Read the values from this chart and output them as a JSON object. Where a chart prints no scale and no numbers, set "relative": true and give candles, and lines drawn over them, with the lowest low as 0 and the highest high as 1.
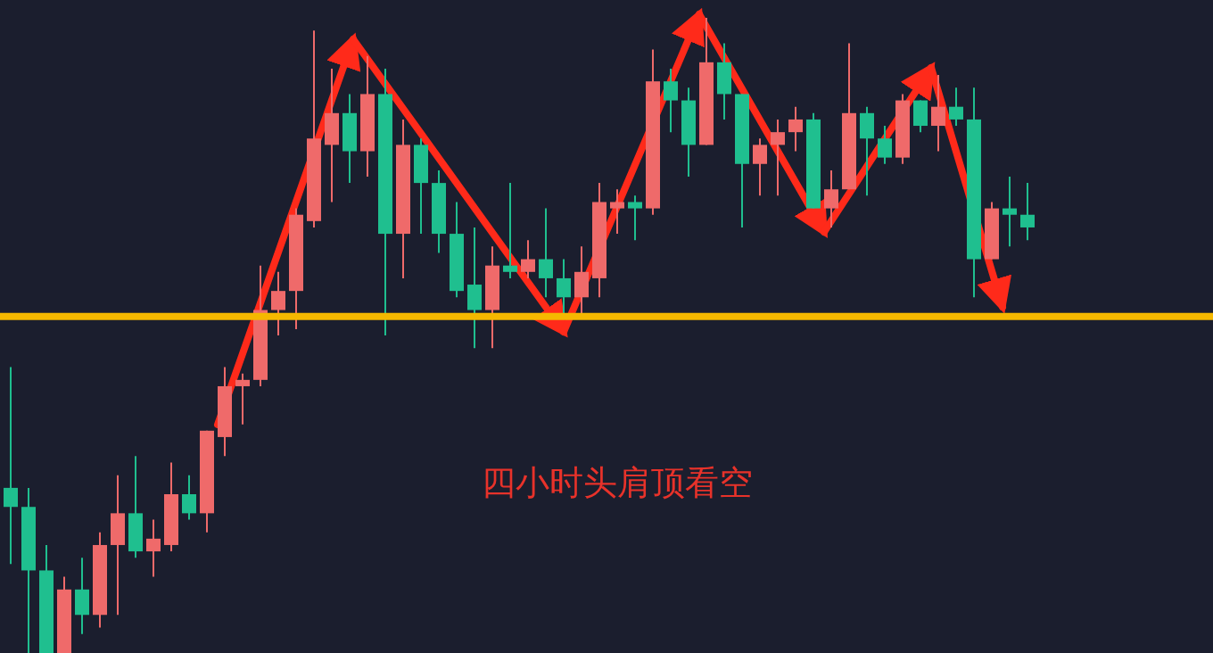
{
  "chart_data": {
    "type": "candlestick",
    "relative": true,
    "categories": [
      null,
      null,
      null,
      null,
      null,
      null,
      null,
      null,
      null,
      null,
      null,
      null,
      null,
      null,
      null,
      null,
      null,
      null,
      null,
      null,
      null,
      null,
      null,
      null,
      null,
      null,
      null,
      null,
      null,
      null,
      null,
      null,
      null,
      null,
      null,
      null,
      null,
      null,
      null,
      null,
      null,
      null,
      null,
      null,
      null,
      null,
      null,
      null,
      null,
      null,
      null,
      null,
      null,
      null,
      null,
      null,
      null,
      null
    ],
    "ohlc": [
      [
        0.26,
        0.45,
        0.14,
        0.23
      ],
      [
        0.23,
        0.26,
        0,
        0.13
      ],
      [
        0.13,
        0.17,
        0,
        0
      ],
      [
        0,
        0.12,
        0,
        0.1
      ],
      [
        0.1,
        0.15,
        0.03,
        0.06
      ],
      [
        0.06,
        0.19,
        0.04,
        0.17
      ],
      [
        0.17,
        0.28,
        0.06,
        0.22
      ],
      [
        0.22,
        0.31,
        0.15,
        0.16
      ],
      [
        0.16,
        0.21,
        0.12,
        0.18
      ],
      [
        0.17,
        0.3,
        0.16,
        0.25
      ],
      [
        0.25,
        0.28,
        0.21,
        0.22
      ],
      [
        0.22,
        0.35,
        0.19,
        0.35
      ],
      [
        0.34,
        0.45,
        0.31,
        0.42
      ],
      [
        0.42,
        0.44,
        0.36,
        0.43
      ],
      [
        0.43,
        0.61,
        0.42,
        0.54
      ],
      [
        0.54,
        0.6,
        0.5,
        0.57
      ],
      [
        0.57,
        0.7,
        0.51,
        0.69
      ],
      [
        0.68,
        0.98,
        0.67,
        0.81
      ],
      [
        0.8,
        0.92,
        0.71,
        0.85
      ],
      [
        0.85,
        0.88,
        0.74,
        0.79
      ],
      [
        0.79,
        0.94,
        0.75,
        0.88
      ],
      [
        0.88,
        0.92,
        0.5,
        0.66
      ],
      [
        0.66,
        0.84,
        0.59,
        0.8
      ],
      [
        0.8,
        0.81,
        0.66,
        0.74
      ],
      [
        0.74,
        0.76,
        0.63,
        0.66
      ],
      [
        0.66,
        0.71,
        0.56,
        0.57
      ],
      [
        0.58,
        0.67,
        0.48,
        0.54
      ],
      [
        0.54,
        0.64,
        0.48,
        0.61
      ],
      [
        0.61,
        0.74,
        0.59,
        0.6
      ],
      [
        0.6,
        0.65,
        0.59,
        0.62
      ],
      [
        0.62,
        0.7,
        0.56,
        0.59
      ],
      [
        0.59,
        0.62,
        0.53,
        0.56
      ],
      [
        0.56,
        0.64,
        0.53,
        0.6
      ],
      [
        0.59,
        0.74,
        0.56,
        0.71
      ],
      [
        0.7,
        0.73,
        0.66,
        0.71
      ],
      [
        0.71,
        0.72,
        0.65,
        0.7
      ],
      [
        0.7,
        0.95,
        0.69,
        0.9
      ],
      [
        0.9,
        0.92,
        0.82,
        0.87
      ],
      [
        0.87,
        0.89,
        0.75,
        0.8
      ],
      [
        0.8,
        1,
        0.8,
        0.93
      ],
      [
        0.93,
        0.96,
        0.84,
        0.88
      ],
      [
        0.88,
        0.88,
        0.67,
        0.77
      ],
      [
        0.77,
        0.81,
        0.72,
        0.8
      ],
      [
        0.8,
        0.84,
        0.72,
        0.82
      ],
      [
        0.82,
        0.86,
        0.79,
        0.84
      ],
      [
        0.84,
        0.85,
        0.7,
        0.7
      ],
      [
        0.7,
        0.76,
        0.67,
        0.73
      ],
      [
        0.73,
        0.96,
        0.73,
        0.85
      ],
      [
        0.85,
        0.86,
        0.72,
        0.81
      ],
      [
        0.81,
        0.83,
        0.77,
        0.78
      ],
      [
        0.78,
        0.88,
        0.77,
        0.87
      ],
      [
        0.87,
        0.87,
        0.82,
        0.83
      ],
      [
        0.83,
        0.91,
        0.79,
        0.86
      ],
      [
        0.86,
        0.89,
        0.83,
        0.84
      ],
      [
        0.84,
        0.89,
        0.56,
        0.62
      ],
      [
        0.62,
        0.71,
        0.62,
        0.7
      ],
      [
        0.7,
        0.75,
        0.64,
        0.69
      ],
      [
        0.69,
        0.74,
        0.65,
        0.67
      ]
    ],
    "colors": [
      "#1fbf8f",
      "#1fbf8f",
      "#1fbf8f",
      "#ef6a6a",
      "#1fbf8f",
      "#ef6a6a",
      "#ef6a6a",
      "#1fbf8f",
      "#ef6a6a",
      "#ef6a6a",
      "#1fbf8f",
      "#ef6a6a",
      "#ef6a6a",
      "#ef6a6a",
      "#ef6a6a",
      "#ef6a6a",
      "#ef6a6a",
      "#ef6a6a",
      "#ef6a6a",
      "#1fbf8f",
      "#ef6a6a",
      "#1fbf8f",
      "#ef6a6a",
      "#1fbf8f",
      "#1fbf8f",
      "#1fbf8f",
      "#1fbf8f",
      "#ef6a6a",
      "#1fbf8f",
      "#ef6a6a",
      "#1fbf8f",
      "#1fbf8f",
      "#ef6a6a",
      "#ef6a6a",
      "#ef6a6a",
      "#1fbf8f",
      "#ef6a6a",
      "#1fbf8f",
      "#1fbf8f",
      "#ef6a6a",
      "#1fbf8f",
      "#1fbf8f",
      "#ef6a6a",
      "#ef6a6a",
      "#ef6a6a",
      "#1fbf8f",
      "#ef6a6a",
      "#ef6a6a",
      "#1fbf8f",
      "#1fbf8f",
      "#ef6a6a",
      "#1fbf8f",
      "#ef6a6a",
      "#1fbf8f",
      "#1fbf8f",
      "#ef6a6a",
      "#1fbf8f",
      "#1fbf8f"
    ],
    "ref_lines": [
      {
        "axis": "y",
        "value": 0.53,
        "color": "#f5b800"
      }
    ],
    "annotations": [
      "四小时头肩顶看空"
    ]
  }
}
